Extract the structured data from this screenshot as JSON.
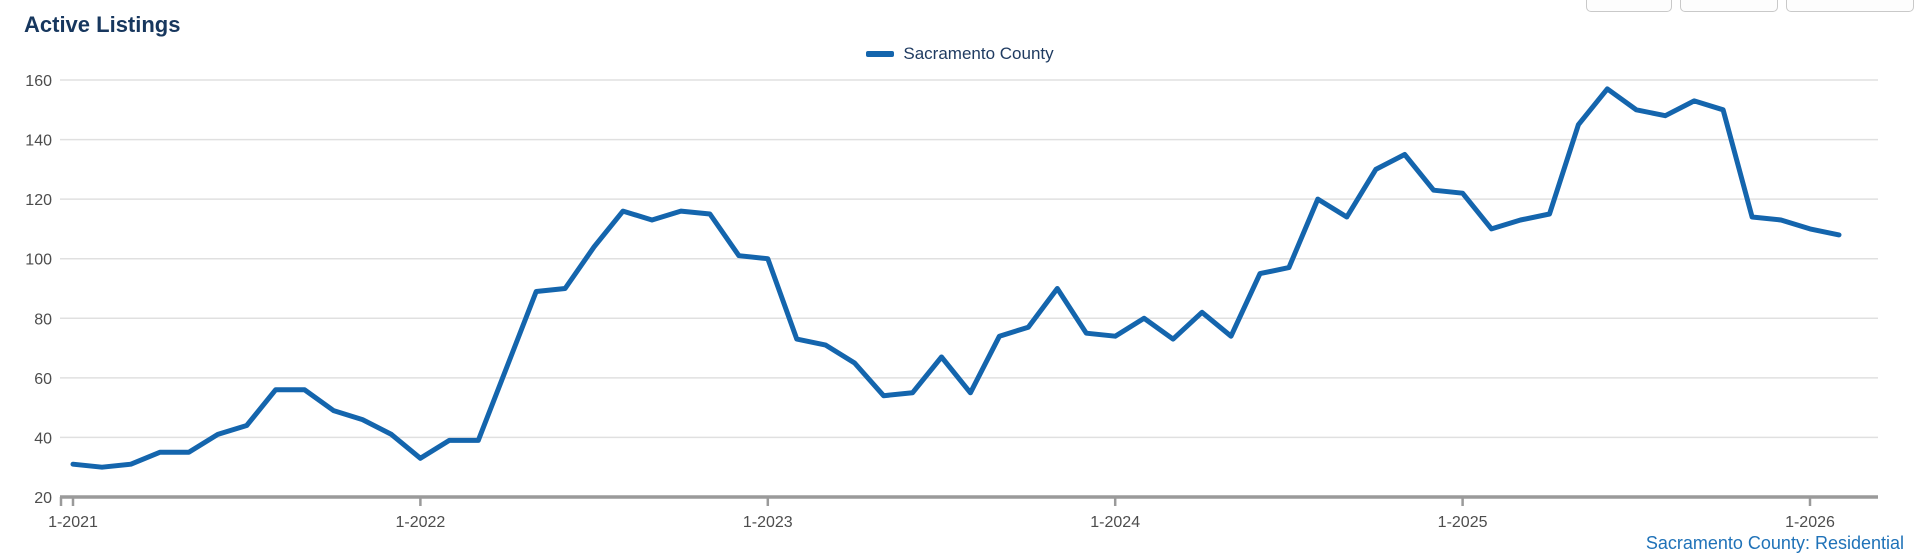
{
  "header": {
    "title": "Active Listings"
  },
  "legend": {
    "label": "Sacramento County"
  },
  "footer": {
    "label": "Sacramento County: Residential"
  },
  "colors": {
    "line": "#1465ad",
    "title": "#17375e",
    "legend_text": "#1f3b61",
    "footer_link": "#1f72b8",
    "axis": "#9a9a9a",
    "grid": "#e0e0e0",
    "tick_label": "#4d4d4d"
  },
  "chart_data": {
    "type": "line",
    "title": "Active Listings",
    "x_frequency": "monthly",
    "x_range": [
      "1-2021",
      "2-2026"
    ],
    "x_tick_labels": [
      "1-2021",
      "1-2022",
      "1-2023",
      "1-2024",
      "1-2025",
      "1-2026"
    ],
    "x_tick_month_indices": [
      0,
      12,
      24,
      36,
      48,
      60
    ],
    "y_ticks": [
      20,
      40,
      60,
      80,
      100,
      120,
      140,
      160
    ],
    "ylim": [
      20,
      160
    ],
    "grid": true,
    "legend_position": "top-center",
    "series": [
      {
        "name": "Sacramento County",
        "values": [
          31,
          30,
          31,
          35,
          35,
          41,
          44,
          56,
          56,
          49,
          46,
          41,
          33,
          39,
          39,
          64,
          89,
          90,
          104,
          116,
          113,
          116,
          115,
          101,
          100,
          73,
          71,
          65,
          54,
          55,
          67,
          55,
          74,
          77,
          90,
          75,
          74,
          80,
          73,
          82,
          74,
          95,
          97,
          120,
          114,
          130,
          135,
          123,
          122,
          110,
          113,
          115,
          145,
          157,
          150,
          148,
          153,
          150,
          114,
          113,
          110,
          108
        ]
      }
    ]
  }
}
